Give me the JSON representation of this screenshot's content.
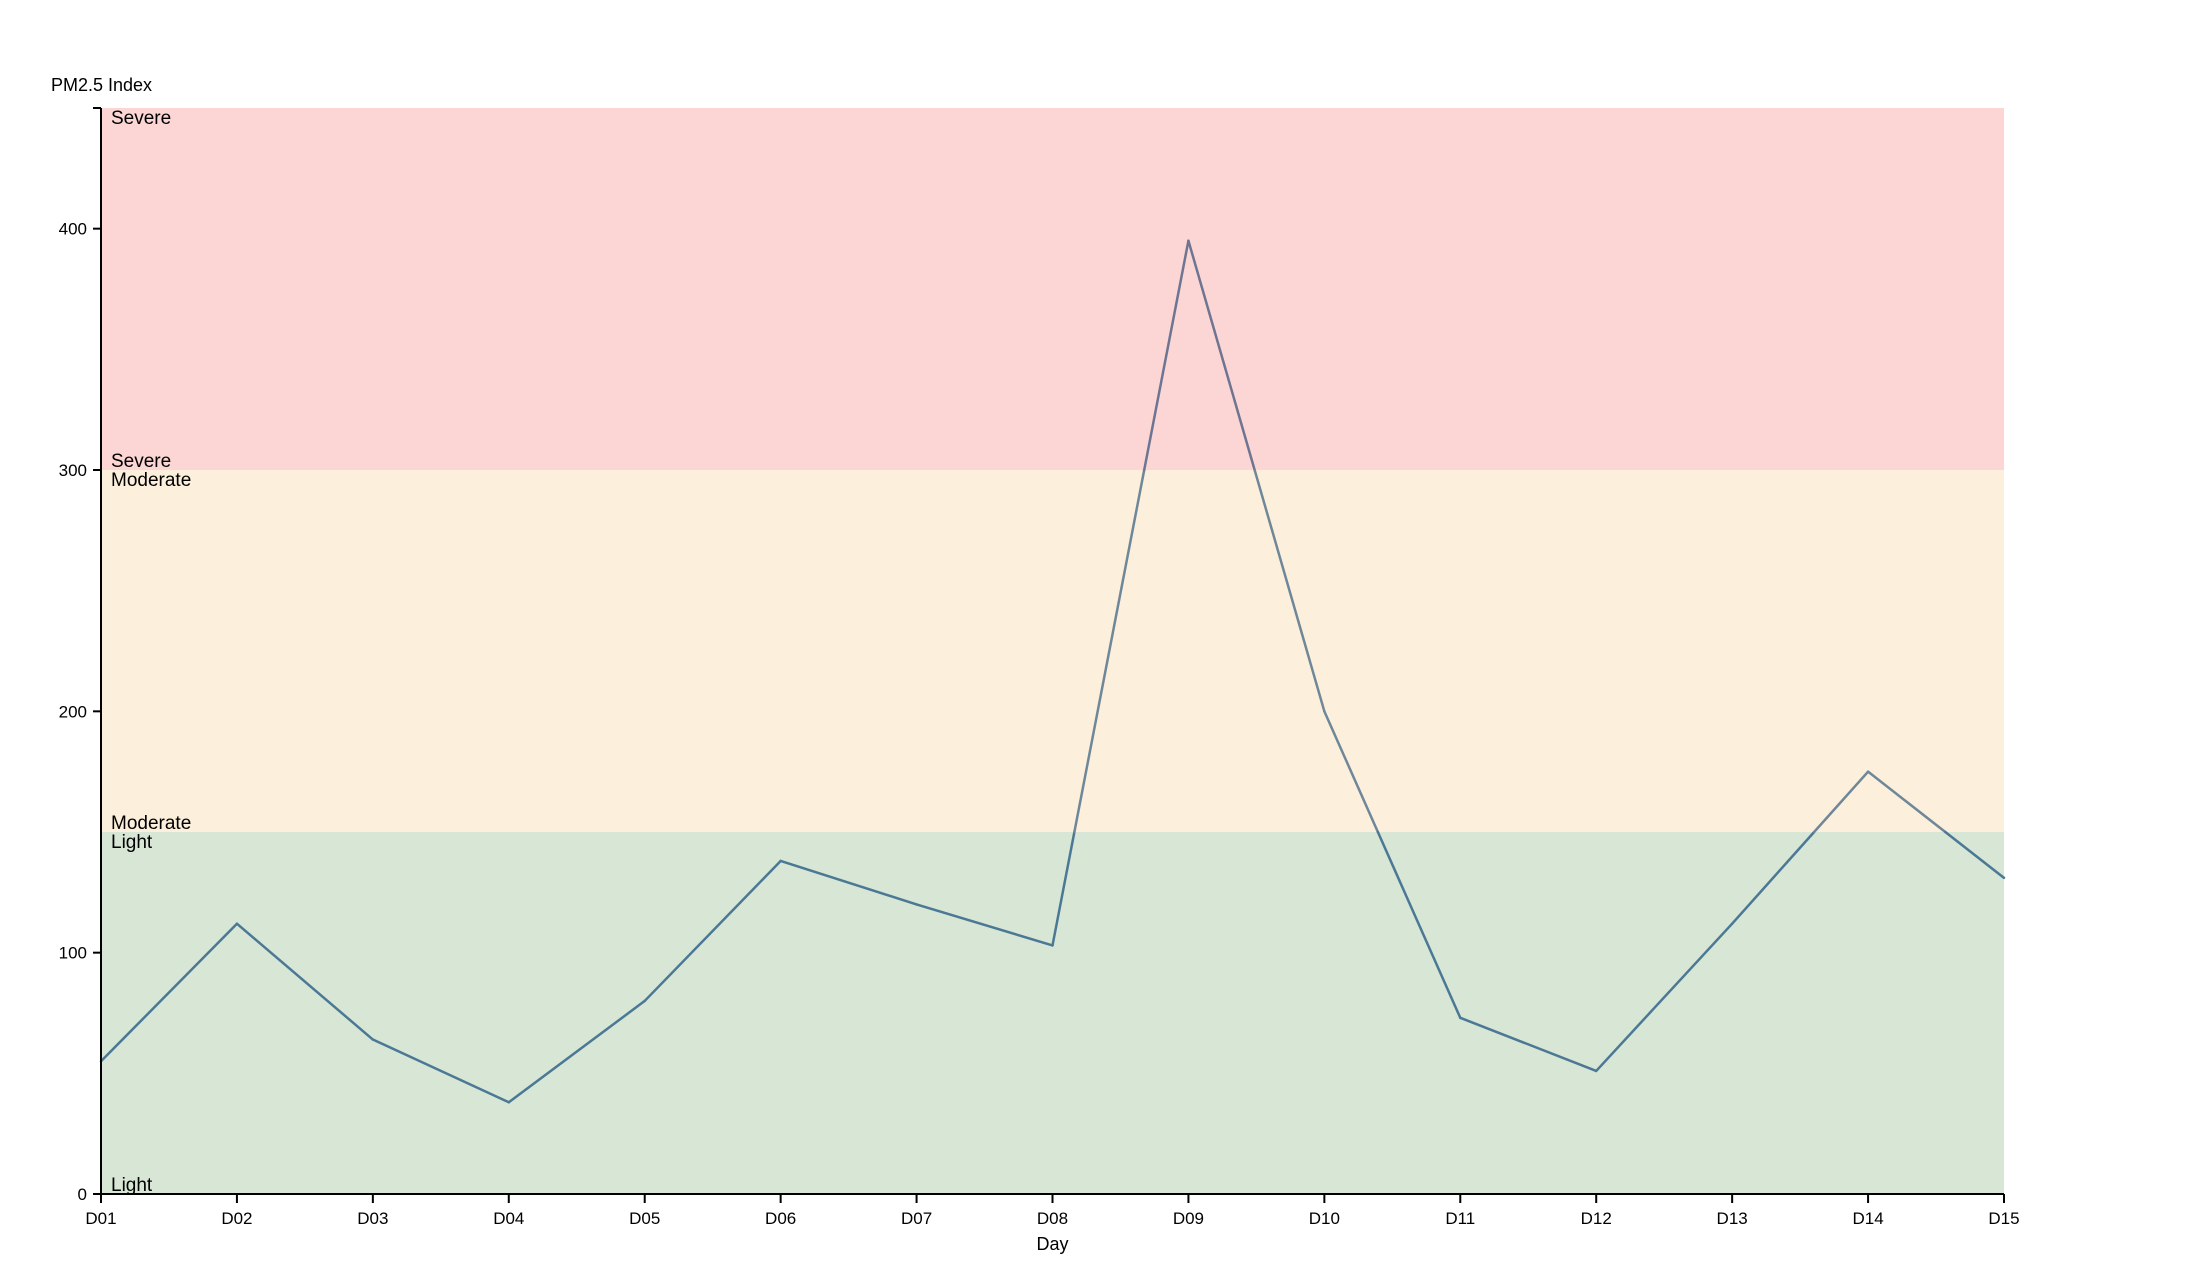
{
  "chart_data": {
    "type": "line",
    "title": "",
    "xlabel": "Day",
    "ylabel": "PM2.5 Index",
    "ylim": [
      0,
      450
    ],
    "yticks": [
      0,
      100,
      200,
      300,
      400
    ],
    "grid": false,
    "categories": [
      "D01",
      "D02",
      "D03",
      "D04",
      "D05",
      "D06",
      "D07",
      "D08",
      "D09",
      "D10",
      "D11",
      "D12",
      "D13",
      "D14",
      "D15"
    ],
    "series": [
      {
        "values": [
          55,
          112,
          64,
          38,
          80,
          138,
          120,
          103,
          395,
          200,
          73,
          51,
          112,
          175,
          131
        ]
      }
    ],
    "bands": [
      {
        "name": "Light",
        "from": 0,
        "to": 150,
        "color": "#d7e6d5"
      },
      {
        "name": "Moderate",
        "from": 150,
        "to": 300,
        "color": "#fcefdb"
      },
      {
        "name": "Severe",
        "from": 300,
        "to": 450,
        "color": "#fbd6d4"
      }
    ],
    "series_colors": {
      "Light": "#4b7895",
      "Moderate": "#6e8799",
      "Severe": "#6d7592"
    }
  }
}
